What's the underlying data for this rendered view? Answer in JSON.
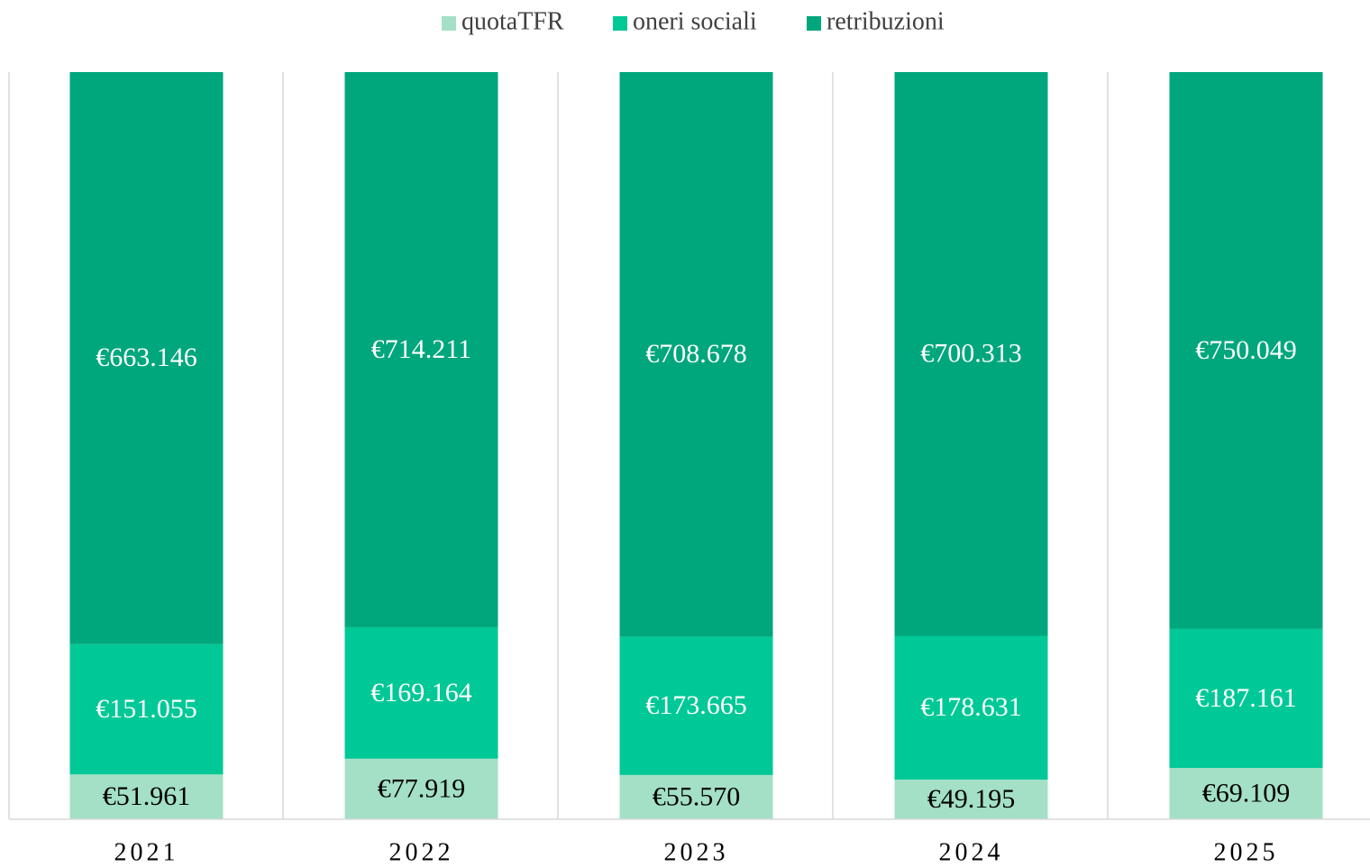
{
  "chart_data": {
    "type": "bar",
    "stacked": "percent",
    "categories": [
      "2021",
      "2022",
      "2023",
      "2024",
      "2025"
    ],
    "series": [
      {
        "name": "quotaTFR",
        "color": "#a3e0c6",
        "label_color": "#000000",
        "values": [
          51961,
          77919,
          55570,
          49195,
          69109
        ],
        "value_labels": [
          "€51.961",
          "€77.919",
          "€55.570",
          "€49.195",
          "€69.109"
        ]
      },
      {
        "name": "oneri sociali",
        "color": "#00c896",
        "label_color": "#ffffff",
        "values": [
          151055,
          169164,
          173665,
          178631,
          187161
        ],
        "value_labels": [
          "€151.055",
          "€169.164",
          "€173.665",
          "€178.631",
          "€187.161"
        ]
      },
      {
        "name": "retribuzioni",
        "color": "#00a67c",
        "label_color": "#ffffff",
        "values": [
          663146,
          714211,
          708678,
          700313,
          750049
        ],
        "value_labels": [
          "€663.146",
          "€714.211",
          "€708.678",
          "€700.313",
          "€750.049"
        ]
      }
    ]
  }
}
